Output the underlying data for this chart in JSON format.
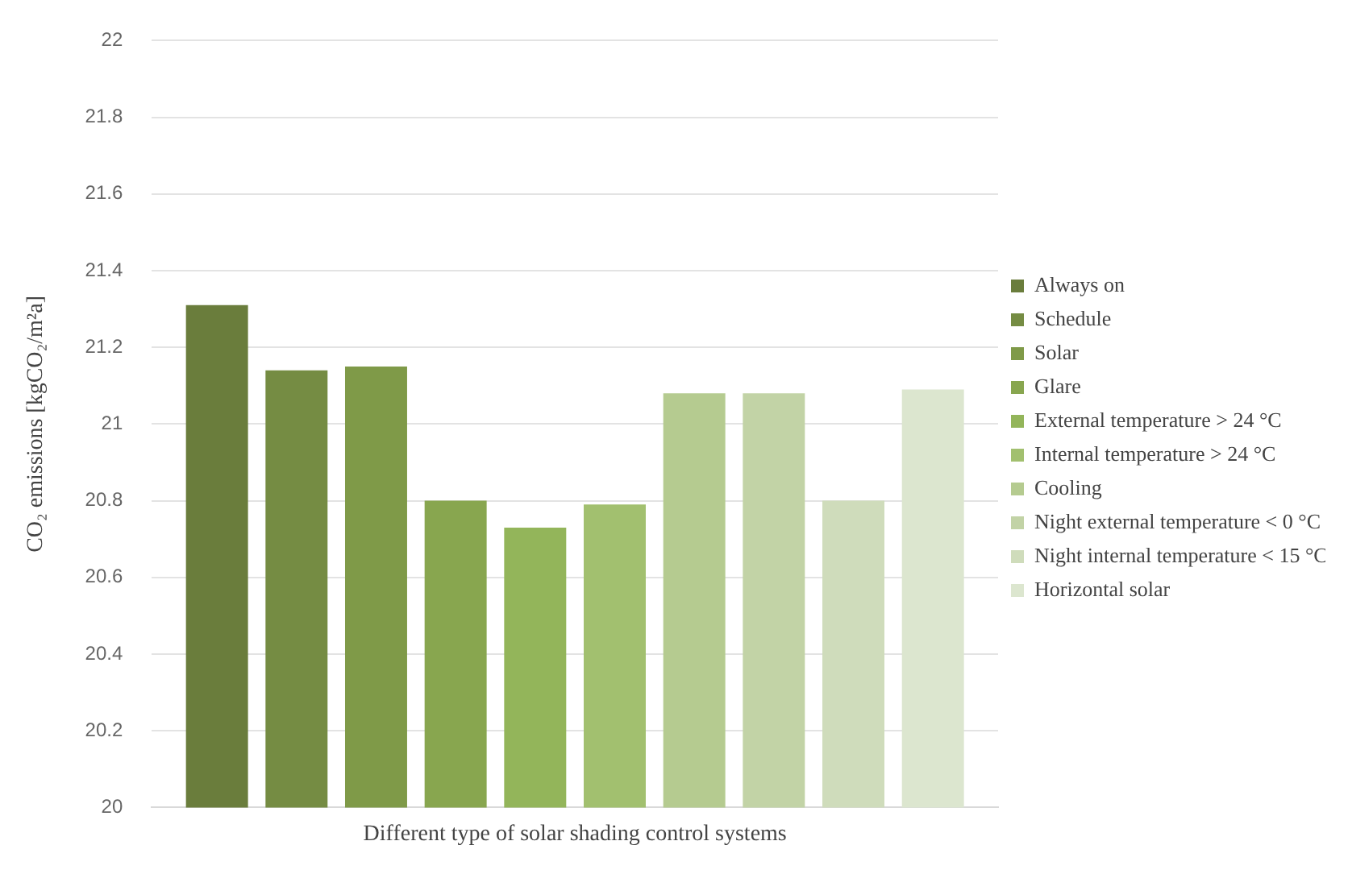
{
  "chart_data": {
    "type": "bar",
    "xlabel": null,
    "ylabel": "CO₂ emissions [kgCO₂/m²a]",
    "categories": [
      "Different type of solar shading control systems"
    ],
    "series": [
      {
        "name": "Always on",
        "color": "#6a7d3c",
        "values": [
          21.31
        ]
      },
      {
        "name": "Schedule",
        "color": "#758c43",
        "values": [
          21.14
        ]
      },
      {
        "name": "Solar",
        "color": "#7f9a48",
        "values": [
          21.15
        ]
      },
      {
        "name": "Glare",
        "color": "#88a64f",
        "values": [
          20.8
        ]
      },
      {
        "name": "External temperature > 24 °C",
        "color": "#93b55a",
        "values": [
          20.73
        ]
      },
      {
        "name": "Internal temperature > 24 °C",
        "color": "#a2c06f",
        "values": [
          20.79
        ]
      },
      {
        "name": "Cooling",
        "color": "#b5cb90",
        "values": [
          21.08
        ]
      },
      {
        "name": "Night external temperature < 0 °C",
        "color": "#c2d3a6",
        "values": [
          21.08
        ]
      },
      {
        "name": "Night internal temperature < 15 °C",
        "color": "#cfdcbb",
        "values": [
          20.8
        ]
      },
      {
        "name": "Horizontal solar",
        "color": "#dce6cf",
        "values": [
          21.09
        ]
      }
    ],
    "ylim": [
      20,
      22
    ],
    "yticks": [
      20,
      20.2,
      20.4,
      20.6,
      20.8,
      21,
      21.2,
      21.4,
      21.6,
      21.8,
      22
    ],
    "grid": "y",
    "legend": "right"
  }
}
